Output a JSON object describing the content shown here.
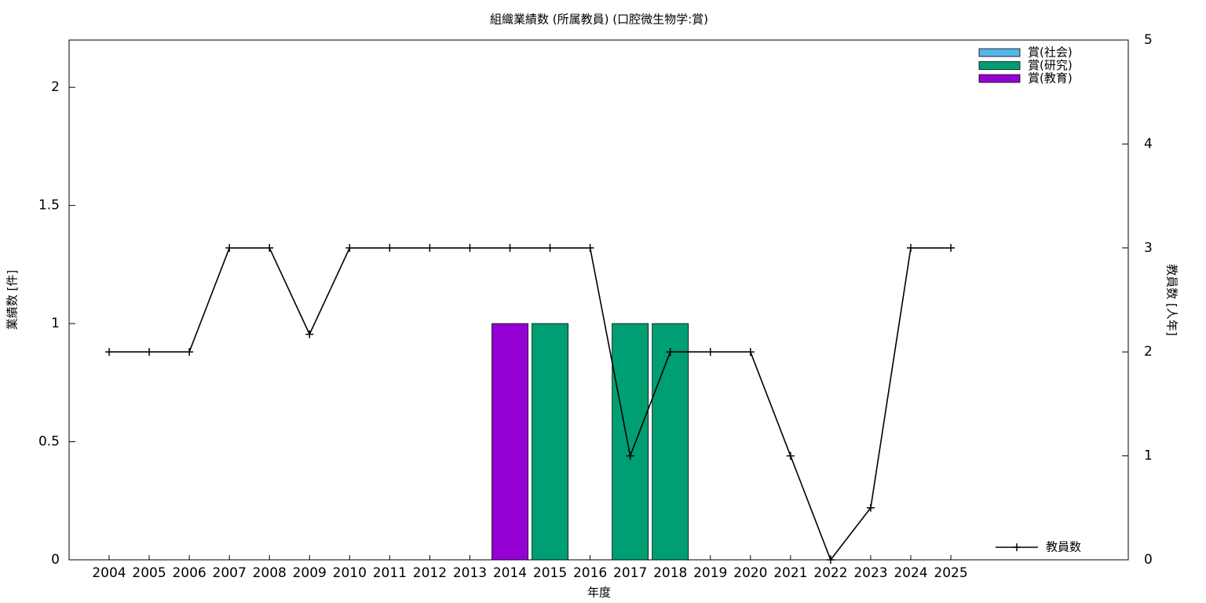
{
  "chart_data": {
    "type": "bar",
    "title": "組織業績数 (所属教員) (口腔微生物学:賞)",
    "x_label": "年度",
    "y_label": "業績数 [件]",
    "y2_label": "教員数 [人年]",
    "categories": [
      "2004",
      "2005",
      "2006",
      "2007",
      "2008",
      "2009",
      "2010",
      "2011",
      "2012",
      "2013",
      "2014",
      "2015",
      "2016",
      "2017",
      "2018",
      "2019",
      "2020",
      "2021",
      "2022",
      "2023",
      "2024",
      "2025"
    ],
    "stacked": true,
    "series": [
      {
        "name": "賞(社会)",
        "color": "#56b4e9",
        "values": [
          0,
          0,
          0,
          0,
          0,
          0,
          0,
          0,
          0,
          0,
          0,
          0,
          0,
          0,
          0,
          0,
          0,
          0,
          0,
          0,
          0,
          0
        ]
      },
      {
        "name": "賞(研究)",
        "color": "#009e73",
        "values": [
          0,
          0,
          0,
          0,
          0,
          0,
          0,
          0,
          0,
          0,
          0,
          1,
          0,
          1,
          1,
          0,
          0,
          0,
          0,
          0,
          0,
          0
        ]
      },
      {
        "name": "賞(教育)",
        "color": "#9400d3",
        "values": [
          0,
          0,
          0,
          0,
          0,
          0,
          0,
          0,
          0,
          0,
          1,
          0,
          0,
          0,
          0,
          0,
          0,
          0,
          0,
          0,
          0,
          0
        ]
      },
      {
        "name": "教員数",
        "type": "line",
        "axis": "y2",
        "color": "#000000",
        "values": [
          2,
          2,
          2,
          3,
          3,
          2.17,
          3,
          3,
          3,
          3,
          3,
          3,
          3,
          1,
          2,
          2,
          2,
          1,
          0,
          0.5,
          3,
          3
        ]
      }
    ],
    "ylim": [
      0,
      2.2
    ],
    "yticks": [
      0,
      0.5,
      1,
      1.5,
      2
    ],
    "y2lim": [
      0,
      5
    ],
    "y2ticks": [
      0,
      1,
      2,
      3,
      4,
      5
    ],
    "legend": "top-right",
    "line_legend": "bottom-right"
  }
}
